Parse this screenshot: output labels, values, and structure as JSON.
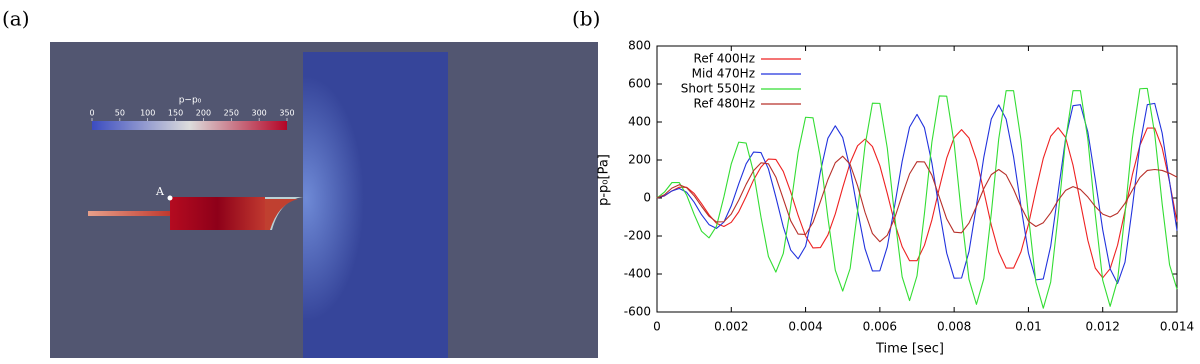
{
  "panels": {
    "a_label": "(a)",
    "b_label": "(b)"
  },
  "simulation": {
    "point_label": "A",
    "colorbar": {
      "title": "p−p₀",
      "lim": [
        0,
        350
      ],
      "ticks": [
        0,
        50,
        100,
        150,
        200,
        250,
        300,
        350
      ]
    }
  },
  "chart_data": {
    "type": "line",
    "xlabel": "Time [sec]",
    "ylabel": "p-p₀[Pa]",
    "xlim": [
      0,
      0.014
    ],
    "xticks": [
      0,
      0.002,
      0.004,
      0.006,
      0.008,
      0.01,
      0.012,
      0.014
    ],
    "ylim": [
      -600,
      800
    ],
    "yticks": [
      -600,
      -400,
      -200,
      0,
      200,
      400,
      600,
      800
    ],
    "grid": false,
    "legend": "upper left",
    "x": [
      0,
      0.0002,
      0.0004,
      0.0006,
      0.0008,
      0.001,
      0.0012,
      0.0014,
      0.0016,
      0.0018,
      0.002,
      0.0022,
      0.0024,
      0.0026,
      0.0028,
      0.003,
      0.0032,
      0.0034,
      0.0036,
      0.0038,
      0.004,
      0.0042,
      0.0044,
      0.0046,
      0.0048,
      0.005,
      0.0052,
      0.0054,
      0.0056,
      0.0058,
      0.006,
      0.0062,
      0.0064,
      0.0066,
      0.0068,
      0.007,
      0.0072,
      0.0074,
      0.0076,
      0.0078,
      0.008,
      0.0082,
      0.0084,
      0.0086,
      0.0088,
      0.009,
      0.0092,
      0.0094,
      0.0096,
      0.0098,
      0.01,
      0.0102,
      0.0104,
      0.0106,
      0.0108,
      0.011,
      0.0112,
      0.0114,
      0.0116,
      0.0118,
      0.012,
      0.0122,
      0.0124,
      0.0126,
      0.0128,
      0.013,
      0.0132,
      0.0134,
      0.0136,
      0.0138,
      0.014
    ],
    "series": [
      {
        "name": "Ref 400Hz",
        "color": "#ee2222",
        "values": [
          0,
          11,
          37,
          57,
          56,
          24,
          -30,
          -88,
          -133,
          -150,
          -128,
          -73,
          8,
          95,
          163,
          205,
          203,
          140,
          32,
          -92,
          -200,
          -263,
          -261,
          -195,
          -84,
          55,
          185,
          275,
          310,
          271,
          170,
          24,
          -132,
          -256,
          -330,
          -330,
          -249,
          -116,
          52,
          210,
          318,
          360,
          316,
          201,
          34,
          -143,
          -284,
          -369,
          -369,
          -283,
          -140,
          40,
          209,
          325,
          370,
          319,
          173,
          -25,
          -223,
          -369,
          -420,
          -372,
          -248,
          -68,
          124,
          276,
          368,
          368,
          264,
          84,
          -124
        ]
      },
      {
        "name": "Mid 470Hz",
        "color": "#2233dd",
        "values": [
          0,
          12,
          37,
          50,
          30,
          -22,
          -88,
          -140,
          -160,
          -127,
          -41,
          74,
          180,
          242,
          239,
          153,
          5,
          -152,
          -274,
          -320,
          -254,
          -79,
          139,
          314,
          380,
          318,
          154,
          -65,
          -267,
          -384,
          -383,
          -257,
          -39,
          192,
          373,
          440,
          370,
          185,
          -62,
          -290,
          -422,
          -421,
          -282,
          -40,
          216,
          416,
          490,
          415,
          217,
          -46,
          -290,
          -431,
          -426,
          -253,
          30,
          313,
          486,
          491,
          347,
          97,
          -167,
          -373,
          -450,
          -338,
          -47,
          278,
          491,
          498,
          342,
          85,
          -172
        ]
      },
      {
        "name": "Short 550Hz",
        "color": "#33dd33",
        "values": [
          0,
          31,
          81,
          81,
          15,
          -86,
          -175,
          -210,
          -149,
          5,
          180,
          294,
          289,
          135,
          -101,
          -308,
          -390,
          -292,
          -43,
          240,
          425,
          422,
          215,
          -102,
          -380,
          -490,
          -371,
          -69,
          275,
          499,
          498,
          263,
          -98,
          -415,
          -540,
          -410,
          -82,
          293,
          537,
          536,
          288,
          -93,
          -428,
          -560,
          -424,
          -81,
          310,
          565,
          565,
          305,
          -93,
          -442,
          -580,
          -442,
          -93,
          305,
          565,
          565,
          308,
          -87,
          -433,
          -570,
          -432,
          -83,
          315,
          575,
          577,
          338,
          -30,
          -352,
          -480
        ]
      },
      {
        "name": "Ref 480Hz",
        "color": "#b8302a",
        "values": [
          0,
          17,
          52,
          70,
          54,
          12,
          -44,
          -96,
          -126,
          -125,
          -84,
          -12,
          72,
          144,
          185,
          180,
          110,
          -5,
          -120,
          -190,
          -192,
          -129,
          -19,
          96,
          186,
          220,
          177,
          65,
          -75,
          -187,
          -230,
          -196,
          -105,
          15,
          127,
          191,
          190,
          120,
          5,
          -110,
          -180,
          -183,
          -132,
          -44,
          50,
          123,
          150,
          122,
          46,
          -46,
          -122,
          -150,
          -130,
          -78,
          -12,
          40,
          60,
          45,
          5,
          -45,
          -85,
          -100,
          -80,
          -28,
          42,
          108,
          145,
          150,
          145,
          130,
          110
        ]
      }
    ]
  }
}
